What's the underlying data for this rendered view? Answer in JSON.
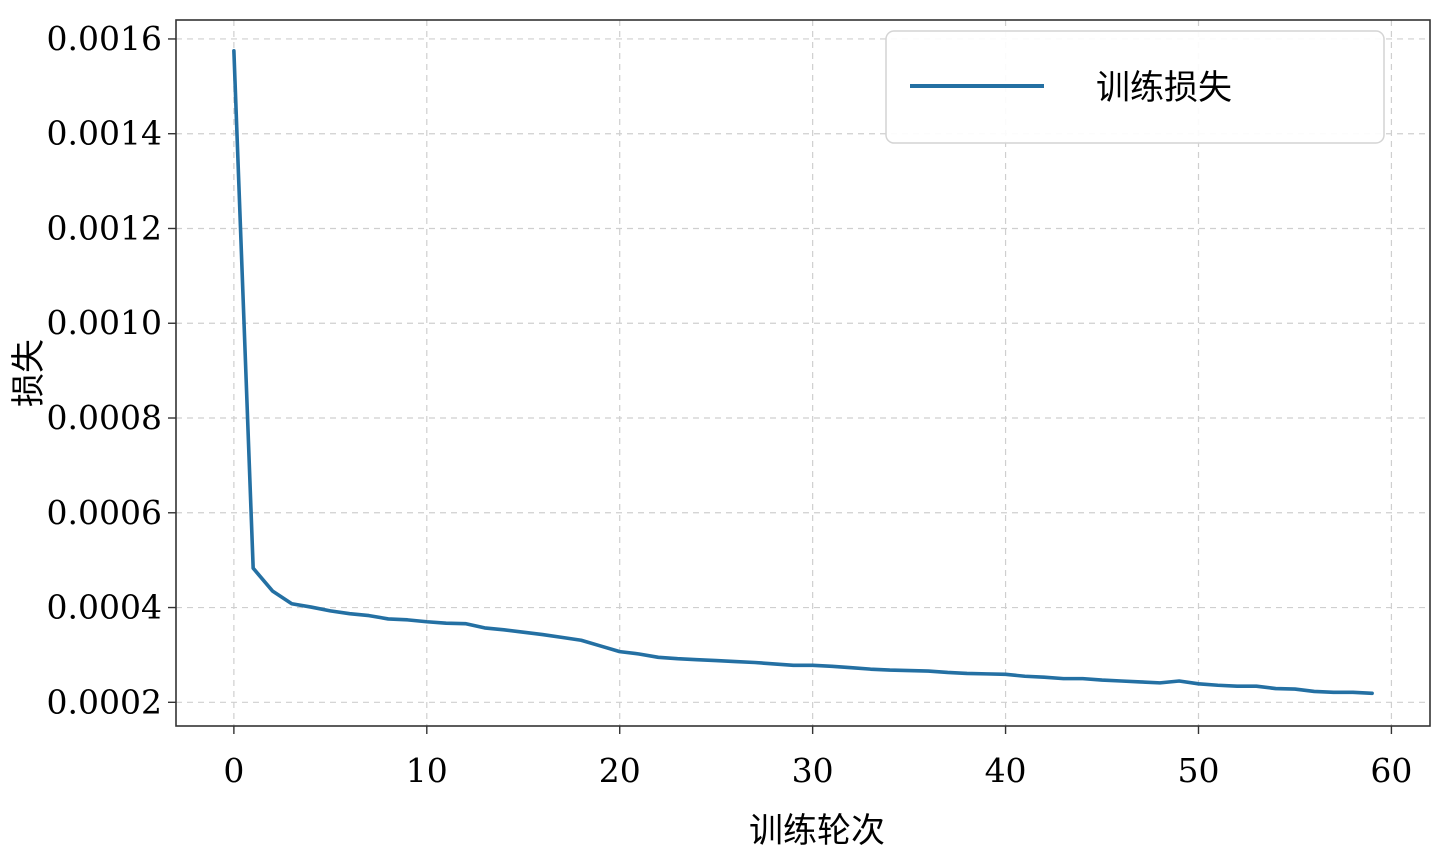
{
  "chart_data": {
    "type": "line",
    "title": "",
    "xlabel": "训练轮次",
    "ylabel": "损失",
    "xlim": [
      -3,
      62
    ],
    "ylim": [
      0.00015,
      0.00164
    ],
    "grid": true,
    "legend_position": "top-right",
    "x_ticks": [
      0,
      10,
      20,
      30,
      40,
      50,
      60
    ],
    "x_tick_labels": [
      "0",
      "10",
      "20",
      "30",
      "40",
      "50",
      "60"
    ],
    "y_ticks": [
      0.0002,
      0.0004,
      0.0006,
      0.0008,
      0.001,
      0.0012,
      0.0014,
      0.0016
    ],
    "y_tick_labels": [
      "0.0002",
      "0.0004",
      "0.0006",
      "0.0008",
      "0.0010",
      "0.0012",
      "0.0014",
      "0.0016"
    ],
    "x": [
      0,
      1,
      2,
      3,
      4,
      5,
      6,
      7,
      8,
      9,
      10,
      11,
      12,
      13,
      14,
      15,
      16,
      17,
      18,
      19,
      20,
      21,
      22,
      23,
      24,
      25,
      26,
      27,
      28,
      29,
      30,
      31,
      32,
      33,
      34,
      35,
      36,
      37,
      38,
      39,
      40,
      41,
      42,
      43,
      44,
      45,
      46,
      47,
      48,
      49,
      50,
      51,
      52,
      53,
      54,
      55,
      56,
      57,
      58,
      59
    ],
    "series": [
      {
        "name": "训练损失",
        "color": "#2470a3",
        "values": [
          0.001575,
          0.000483,
          0.000435,
          0.000408,
          0.000401,
          0.000393,
          0.000387,
          0.000383,
          0.000376,
          0.000374,
          0.00037,
          0.000367,
          0.000366,
          0.000357,
          0.000353,
          0.000348,
          0.000343,
          0.000337,
          0.000331,
          0.000319,
          0.000307,
          0.000302,
          0.000295,
          0.000292,
          0.00029,
          0.000288,
          0.000286,
          0.000284,
          0.000281,
          0.000278,
          0.000278,
          0.000276,
          0.000273,
          0.00027,
          0.000268,
          0.000267,
          0.000266,
          0.000263,
          0.000261,
          0.00026,
          0.000259,
          0.000255,
          0.000253,
          0.00025,
          0.00025,
          0.000247,
          0.000245,
          0.000243,
          0.000241,
          0.000245,
          0.000239,
          0.000236,
          0.000234,
          0.000234,
          0.000229,
          0.000228,
          0.000223,
          0.000221,
          0.000221,
          0.000219
        ]
      }
    ]
  }
}
